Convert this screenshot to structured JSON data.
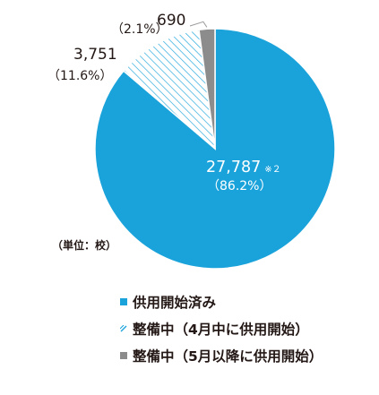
{
  "chart_data": {
    "type": "pie",
    "unit_note": "（単位：校）",
    "start_angle_deg": 0,
    "direction": "clockwise",
    "series": [
      {
        "name": "供用開始済み",
        "value": 27787,
        "value_label": "27,787",
        "value_suffix": "※２",
        "percent_label": "（86.2%）",
        "color": "#1aa3db",
        "pattern": "solid"
      },
      {
        "name": "整備中（4月中に供用開始）",
        "value": 3751,
        "value_label": "3,751",
        "percent_label": "（11.6%）",
        "color": "#1aa3db",
        "pattern": "hatch"
      },
      {
        "name": "整備中（5月以降に供用開始）",
        "value": 690,
        "value_label": "690",
        "percent_label": "（2.1%）",
        "color": "#8c8c8c",
        "pattern": "solid"
      }
    ]
  }
}
